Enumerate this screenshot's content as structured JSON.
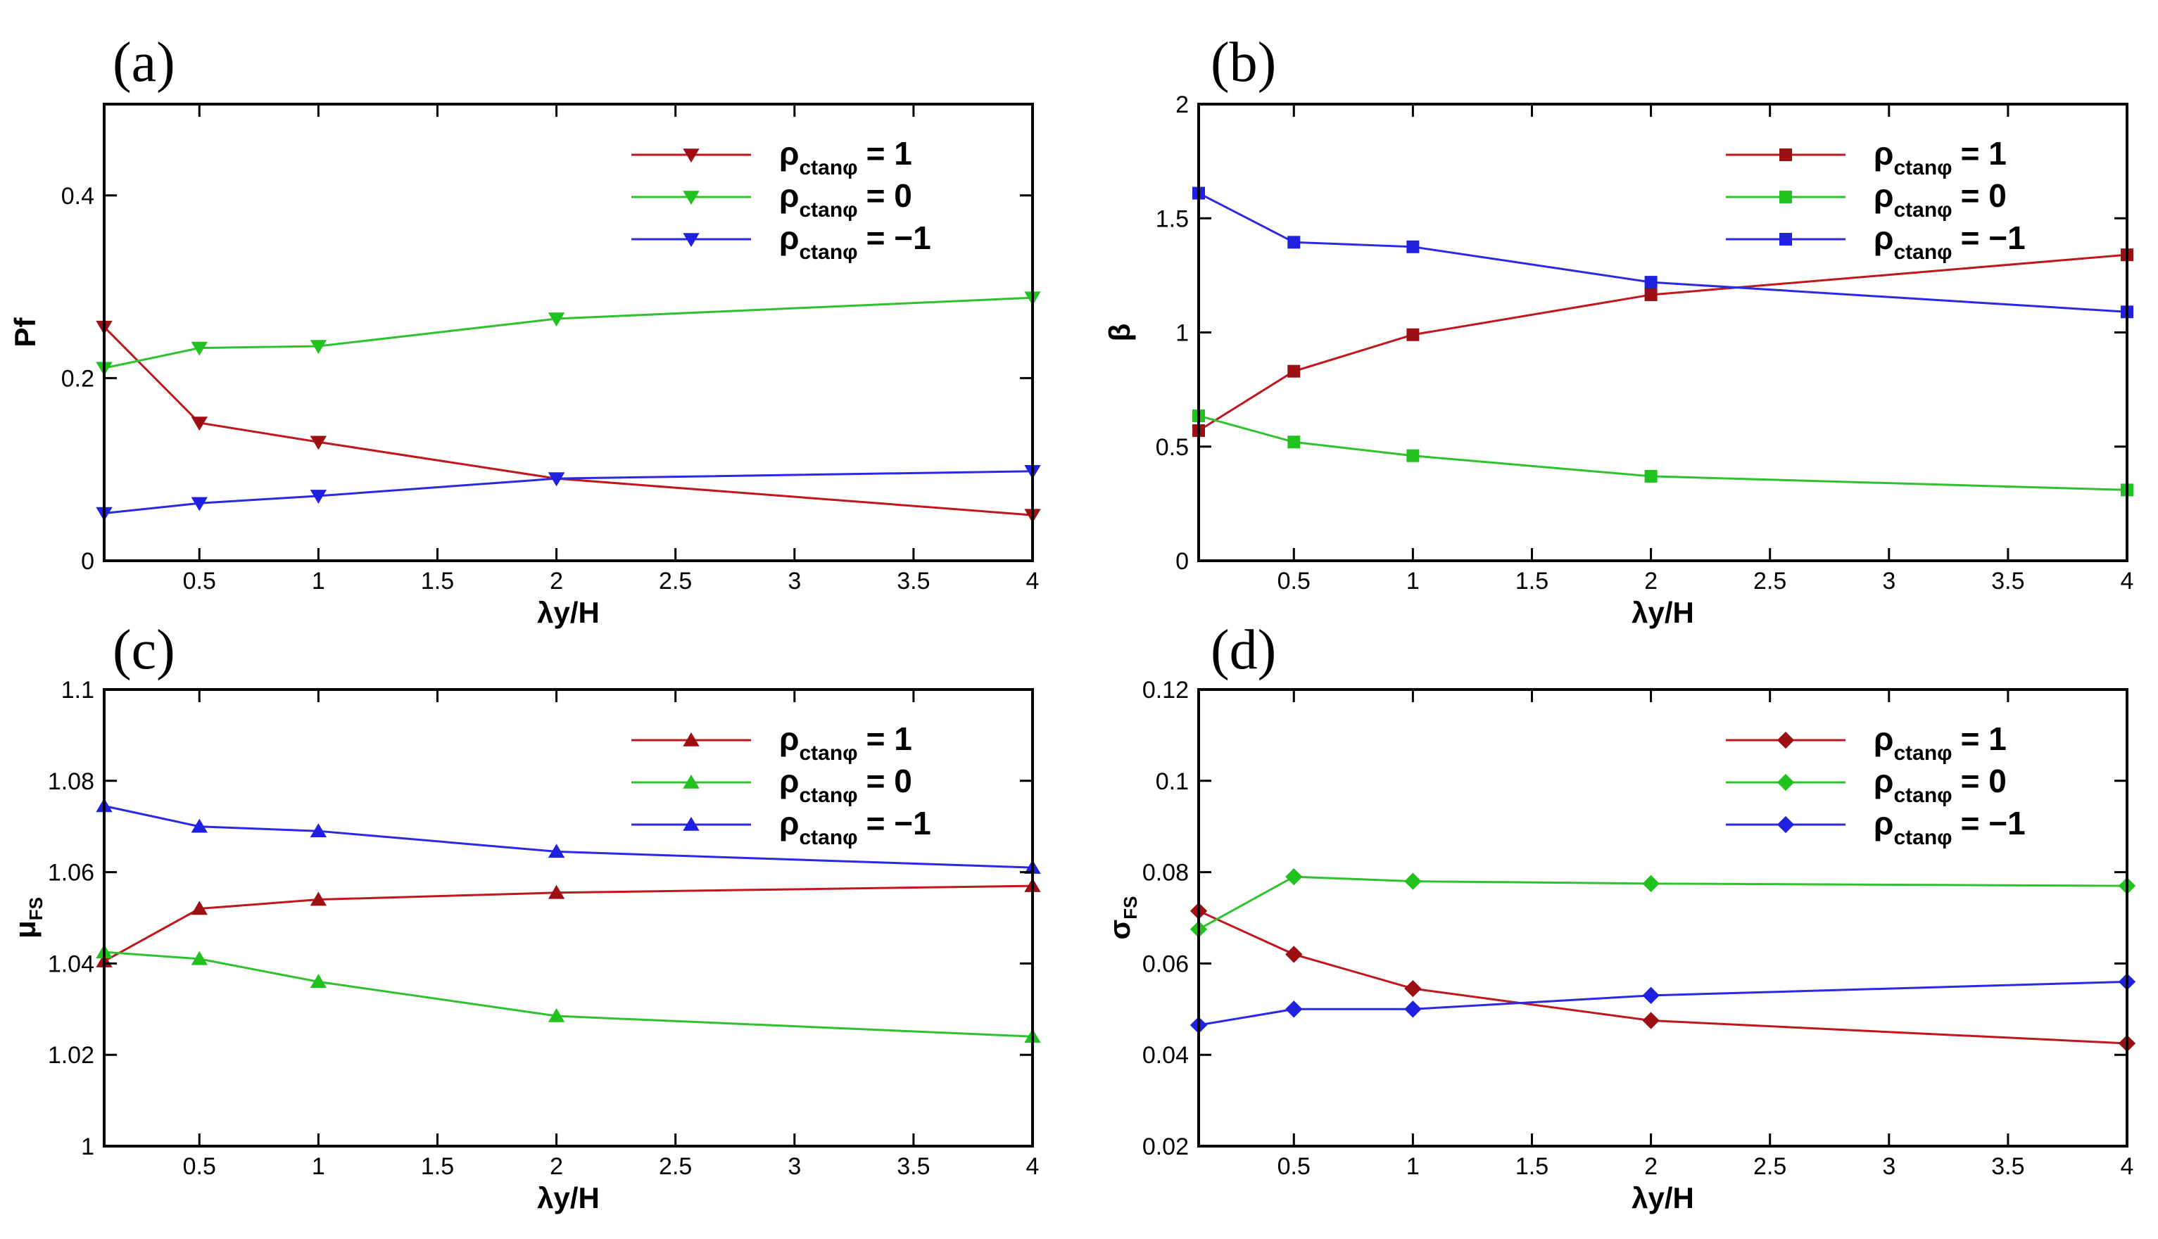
{
  "figure": {
    "legend_prefix": "ρ",
    "legend_subscript": "ctanφ",
    "colors": {
      "red": "#c0161c",
      "green": "#2ec22e",
      "blue": "#2a2ae6"
    },
    "marker_colors": {
      "red": "#9e0f14",
      "green": "#1fc21f",
      "blue": "#2020e0"
    }
  },
  "chart_data": [
    {
      "id": "a",
      "type": "line",
      "panel_label": "(a)",
      "marker": "triangle-down",
      "xlabel": "λy/H",
      "ylabel": "Pf",
      "ylabel_sub": "",
      "xlim": [
        0.1,
        4
      ],
      "ylim": [
        0,
        0.5
      ],
      "xticks": [
        0.5,
        1,
        1.5,
        2,
        2.5,
        3,
        3.5,
        4
      ],
      "xtick_labels": [
        "0.5",
        "1",
        "1.5",
        "2",
        "2.5",
        "3",
        "3.5",
        "4"
      ],
      "yticks": [
        0,
        0.2,
        0.4
      ],
      "ytick_labels": [
        "0",
        "0.2",
        "0.4"
      ],
      "x": [
        0.1,
        0.5,
        1,
        2,
        4
      ],
      "series": [
        {
          "name": "= 1",
          "color": "red",
          "values": [
            0.256,
            0.151,
            0.13,
            0.09,
            0.05
          ]
        },
        {
          "name": "= 0",
          "color": "green",
          "values": [
            0.211,
            0.233,
            0.235,
            0.265,
            0.288
          ]
        },
        {
          "name": "= −1",
          "color": "blue",
          "values": [
            0.052,
            0.063,
            0.071,
            0.09,
            0.098
          ]
        }
      ],
      "legend": "top-right"
    },
    {
      "id": "b",
      "type": "line",
      "panel_label": "(b)",
      "marker": "square",
      "xlabel": "λy/H",
      "ylabel": "β",
      "ylabel_sub": "",
      "xlim": [
        0.1,
        4
      ],
      "ylim": [
        0,
        2
      ],
      "xticks": [
        0.5,
        1,
        1.5,
        2,
        2.5,
        3,
        3.5,
        4
      ],
      "xtick_labels": [
        "0.5",
        "1",
        "1.5",
        "2",
        "2.5",
        "3",
        "3.5",
        "4"
      ],
      "yticks": [
        0,
        0.5,
        1,
        1.5,
        2
      ],
      "ytick_labels": [
        "0",
        "0.5",
        "1",
        "1.5",
        "2"
      ],
      "x": [
        0.1,
        0.5,
        1,
        2,
        4
      ],
      "series": [
        {
          "name": "= 1",
          "color": "red",
          "values": [
            0.57,
            0.83,
            0.99,
            1.165,
            1.34
          ]
        },
        {
          "name": "= 0",
          "color": "green",
          "values": [
            0.635,
            0.52,
            0.46,
            0.37,
            0.31
          ]
        },
        {
          "name": "= −1",
          "color": "blue",
          "values": [
            1.61,
            1.395,
            1.375,
            1.22,
            1.09
          ]
        }
      ],
      "legend": "top-right"
    },
    {
      "id": "c",
      "type": "line",
      "panel_label": "(c)",
      "marker": "triangle-up",
      "xlabel": "λy/H",
      "ylabel": "μ",
      "ylabel_sub": "FS",
      "xlim": [
        0.1,
        4
      ],
      "ylim": [
        1,
        1.1
      ],
      "xticks": [
        0.5,
        1,
        1.5,
        2,
        2.5,
        3,
        3.5,
        4
      ],
      "xtick_labels": [
        "0.5",
        "1",
        "1.5",
        "2",
        "2.5",
        "3",
        "3.5",
        "4"
      ],
      "yticks": [
        1,
        1.02,
        1.04,
        1.06,
        1.08,
        1.1
      ],
      "ytick_labels": [
        "1",
        "1.02",
        "1.04",
        "1.06",
        "1.08",
        "1.1"
      ],
      "x": [
        0.1,
        0.5,
        1,
        2,
        4
      ],
      "series": [
        {
          "name": "= 1",
          "color": "red",
          "values": [
            1.0405,
            1.052,
            1.054,
            1.0555,
            1.057
          ]
        },
        {
          "name": "= 0",
          "color": "green",
          "values": [
            1.0425,
            1.041,
            1.036,
            1.0285,
            1.024
          ]
        },
        {
          "name": "= −1",
          "color": "blue",
          "values": [
            1.0745,
            1.07,
            1.069,
            1.0645,
            1.061
          ]
        }
      ],
      "legend": "top-right"
    },
    {
      "id": "d",
      "type": "line",
      "panel_label": "(d)",
      "marker": "diamond",
      "xlabel": "λy/H",
      "ylabel": "σ",
      "ylabel_sub": "FS",
      "xlim": [
        0.1,
        4
      ],
      "ylim": [
        0.02,
        0.12
      ],
      "xticks": [
        0.5,
        1,
        1.5,
        2,
        2.5,
        3,
        3.5,
        4
      ],
      "xtick_labels": [
        "0.5",
        "1",
        "1.5",
        "2",
        "2.5",
        "3",
        "3.5",
        "4"
      ],
      "yticks": [
        0.02,
        0.04,
        0.06,
        0.08,
        0.1,
        0.12
      ],
      "ytick_labels": [
        "0.02",
        "0.04",
        "0.06",
        "0.08",
        "0.1",
        "0.12"
      ],
      "x": [
        0.1,
        0.5,
        1,
        2,
        4
      ],
      "series": [
        {
          "name": "= 1",
          "color": "red",
          "values": [
            0.0715,
            0.062,
            0.0545,
            0.0475,
            0.0425
          ]
        },
        {
          "name": "= 0",
          "color": "green",
          "values": [
            0.0675,
            0.079,
            0.078,
            0.0775,
            0.077
          ]
        },
        {
          "name": "= −1",
          "color": "blue",
          "values": [
            0.0465,
            0.05,
            0.05,
            0.053,
            0.056
          ]
        }
      ],
      "legend": "top-right"
    }
  ]
}
